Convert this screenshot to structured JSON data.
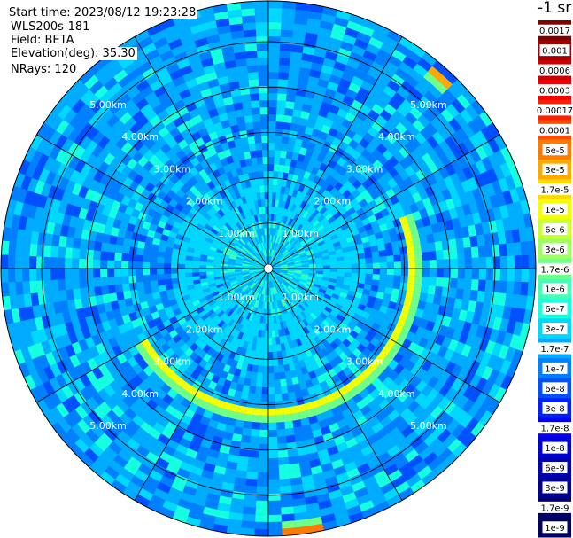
{
  "header": {
    "start_time": "Start time: 2023/08/12 19:23:28",
    "device": "WLS200s-181",
    "field": "Field: BETA",
    "elevation": "Elevation(deg): 35.30",
    "nrays": "NRays: 120"
  },
  "colorbar": {
    "unit": "-1 sr",
    "levels": [
      {
        "label": "0.0017",
        "color": "#7f0000"
      },
      {
        "label": "0.001",
        "color": "#a50000"
      },
      {
        "label": "0.0006",
        "color": "#cc0000"
      },
      {
        "label": "0.0003",
        "color": "#f20000"
      },
      {
        "label": "0.00017",
        "color": "#ff1e00"
      },
      {
        "label": "0.0001",
        "color": "#ff4a00"
      },
      {
        "label": "6e-5",
        "color": "#ff7a00"
      },
      {
        "label": "3e-5",
        "color": "#ffa800"
      },
      {
        "label": "1.7e-5",
        "color": "#ffd800"
      },
      {
        "label": "1e-5",
        "color": "#f4ff02"
      },
      {
        "label": "6e-6",
        "color": "#c8ff2e"
      },
      {
        "label": "3e-6",
        "color": "#9cff5b"
      },
      {
        "label": "1.7e-6",
        "color": "#70ff87"
      },
      {
        "label": "1e-6",
        "color": "#43ffb4"
      },
      {
        "label": "6e-7",
        "color": "#16ffe1"
      },
      {
        "label": "3e-7",
        "color": "#00d8ff"
      },
      {
        "label": "1.7e-7",
        "color": "#00acff"
      },
      {
        "label": "1e-7",
        "color": "#0080ff"
      },
      {
        "label": "6e-8",
        "color": "#0050ff"
      },
      {
        "label": "3e-8",
        "color": "#0020ff"
      },
      {
        "label": "1.7e-8",
        "color": "#0000f6"
      },
      {
        "label": "1e-8",
        "color": "#0000d4"
      },
      {
        "label": "6e-9",
        "color": "#0000b2"
      },
      {
        "label": "3e-9",
        "color": "#000090"
      },
      {
        "label": "1.7e-9",
        "color": "#000070"
      },
      {
        "label": "1e-9",
        "color": "#000060"
      }
    ]
  },
  "chart_data": {
    "type": "heatmap",
    "projection": "polar PPI",
    "range_ring_labels": [
      "1.00km",
      "2.00km",
      "3.00km",
      "4.00km",
      "5.00km"
    ],
    "range_rings_km": [
      1,
      2,
      3,
      4,
      5
    ],
    "max_range_km": 5.9,
    "spoke_angles_deg": [
      0,
      30,
      60,
      90,
      120,
      150,
      180,
      210,
      240,
      270,
      300,
      330
    ],
    "rays": 120,
    "grid": true,
    "color_scale": "log",
    "background_level_range": [
      6e-08,
      1e-06
    ],
    "features": [
      {
        "name": "layer",
        "range_km": 3.2,
        "azimuth_deg": [
          70,
          240
        ],
        "level": 1e-05
      },
      {
        "name": "patch",
        "range_km": 5.6,
        "azimuth_deg": [
          40,
          46
        ],
        "level": 3e-05
      },
      {
        "name": "patch",
        "range_km": 5.8,
        "azimuth_deg": [
          168,
          178
        ],
        "level": 6e-05
      }
    ]
  }
}
